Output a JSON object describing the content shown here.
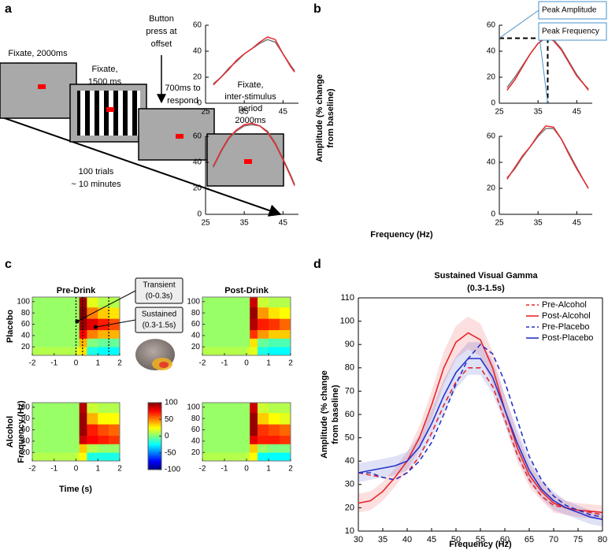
{
  "panel_labels": [
    "a",
    "b",
    "c",
    "d"
  ],
  "diagram": {
    "steps": [
      {
        "label": [
          "Fixate, 2000ms"
        ]
      },
      {
        "label": [
          "Fixate,",
          "1500 ms"
        ]
      },
      {
        "label": [
          "700ms to",
          "respond"
        ]
      },
      {
        "label": [
          "Fixate,",
          "inter-stimulus",
          "period",
          "2000ms"
        ]
      }
    ],
    "event": [
      "Button",
      "press at",
      "offset"
    ],
    "timeline": [
      "100 trials",
      "~ 10 minutes"
    ]
  },
  "panel_b_labels": {
    "ylabel": [
      "Amplitude (% change",
      "from baseline)"
    ],
    "xlabel": "Frequency (Hz)"
  },
  "panel_c_labels": {
    "ylabel": "Frequency (Hz)",
    "xlabel": "Time (s)"
  },
  "chart_data": [
    {
      "type": "line",
      "x": [
        27,
        29,
        31,
        33,
        35,
        37,
        39,
        41,
        43,
        45,
        47,
        48
      ],
      "xlim": [
        25,
        49
      ],
      "xticks": [
        25,
        35,
        45
      ],
      "ylim": [
        0,
        60
      ],
      "yticks": [
        0,
        20,
        40,
        60
      ],
      "series": [
        {
          "color": "#7a7a7a",
          "values": [
            15,
            20,
            27,
            32,
            38,
            42,
            46,
            49,
            47,
            38,
            29,
            25
          ]
        },
        {
          "color": "#e8262a",
          "values": [
            14,
            20,
            26,
            33,
            38,
            42,
            47,
            51,
            49,
            38,
            28,
            24
          ]
        }
      ]
    },
    {
      "type": "line",
      "x": [
        27,
        29,
        31,
        33,
        35,
        37,
        39,
        41,
        43,
        45,
        47,
        48
      ],
      "xlim": [
        25,
        49
      ],
      "xticks": [
        25,
        35,
        45
      ],
      "ylim": [
        0,
        60
      ],
      "yticks": [
        0,
        20,
        40,
        60
      ],
      "series": [
        {
          "color": "#7a7a7a",
          "values": [
            12,
            20,
            29,
            38,
            46,
            50,
            49,
            42,
            32,
            22,
            14,
            11
          ]
        },
        {
          "color": "#e8262a",
          "values": [
            10,
            18,
            28,
            38,
            46,
            51,
            48,
            41,
            31,
            21,
            14,
            10
          ]
        }
      ],
      "annotations": [
        "Peak Amplitude",
        "Peak Frequency"
      ],
      "peak": {
        "x": 37.5,
        "y": 50
      }
    },
    {
      "type": "line",
      "x": [
        27,
        29,
        31,
        33,
        35,
        37,
        39,
        41,
        43,
        45,
        47,
        48
      ],
      "xlim": [
        25,
        49
      ],
      "xticks": [
        25,
        35,
        45
      ],
      "ylim": [
        0,
        60
      ],
      "yticks": [
        0,
        20,
        40,
        60
      ],
      "series": [
        {
          "color": "#7a7a7a",
          "values": [
            36,
            48,
            58,
            64,
            68,
            69,
            68,
            64,
            55,
            43,
            30,
            23
          ]
        },
        {
          "color": "#e8262a",
          "values": [
            37,
            49,
            59,
            65,
            69,
            70,
            68,
            63,
            54,
            42,
            29,
            22
          ]
        }
      ]
    },
    {
      "type": "line",
      "x": [
        27,
        29,
        31,
        33,
        35,
        37,
        39,
        41,
        43,
        45,
        47,
        48
      ],
      "xlim": [
        25,
        49
      ],
      "xticks": [
        25,
        35,
        45
      ],
      "ylim": [
        0,
        60
      ],
      "yticks": [
        0,
        20,
        40,
        60
      ],
      "series": [
        {
          "color": "#7a7a7a",
          "values": [
            28,
            35,
            44,
            52,
            60,
            66,
            66,
            58,
            47,
            36,
            25,
            20
          ]
        },
        {
          "color": "#e8262a",
          "values": [
            27,
            36,
            45,
            52,
            61,
            68,
            67,
            58,
            46,
            35,
            25,
            20
          ]
        }
      ]
    },
    {
      "type": "heatmap",
      "title": "Pre-Drink",
      "row_label": "Placebo",
      "colormap": "jet",
      "clim": [
        -100,
        100
      ],
      "x_edges": [
        -2,
        -1,
        0,
        0.15,
        0.5,
        1,
        1.5,
        2
      ],
      "y_edges": [
        5,
        20,
        35,
        50,
        70,
        90,
        108
      ],
      "z": [
        [
          10,
          10,
          20,
          30,
          -20,
          -25,
          -25
        ],
        [
          5,
          5,
          5,
          40,
          0,
          -5,
          -5
        ],
        [
          5,
          5,
          5,
          75,
          50,
          40,
          40
        ],
        [
          5,
          5,
          5,
          95,
          80,
          70,
          60
        ],
        [
          5,
          5,
          5,
          100,
          50,
          35,
          30
        ],
        [
          5,
          5,
          5,
          95,
          20,
          10,
          10
        ]
      ],
      "xlim": [
        -2,
        2
      ],
      "xticks": [
        -2,
        -1,
        0,
        1,
        2
      ],
      "ylim": [
        5,
        108
      ],
      "yticks": [
        20,
        40,
        60,
        80,
        100
      ],
      "markers": [
        0,
        0.3,
        1.5
      ],
      "annotations": [
        [
          "Transient",
          "(0-0.3s)"
        ],
        [
          "Sustained",
          "(0.3-1.5s)"
        ]
      ]
    },
    {
      "type": "heatmap",
      "title": "Post-Drink",
      "colormap": "jet",
      "clim": [
        -100,
        100
      ],
      "x_edges": [
        -2,
        -1,
        0,
        0.15,
        0.5,
        1,
        1.5,
        2
      ],
      "y_edges": [
        5,
        20,
        35,
        50,
        70,
        90,
        108
      ],
      "z": [
        [
          10,
          10,
          15,
          20,
          -20,
          -25,
          -25
        ],
        [
          5,
          5,
          5,
          30,
          -5,
          -10,
          -10
        ],
        [
          5,
          5,
          5,
          65,
          45,
          35,
          35
        ],
        [
          5,
          5,
          5,
          90,
          70,
          65,
          55
        ],
        [
          5,
          5,
          5,
          95,
          45,
          30,
          25
        ],
        [
          5,
          5,
          5,
          85,
          15,
          10,
          10
        ]
      ],
      "xlim": [
        -2,
        2
      ],
      "xticks": [
        -2,
        -1,
        0,
        1,
        2
      ],
      "ylim": [
        5,
        108
      ],
      "yticks": [
        20,
        40,
        60,
        80,
        100
      ]
    },
    {
      "type": "heatmap",
      "row_label": "Alcohol",
      "colormap": "jet",
      "clim": [
        -100,
        100
      ],
      "x_edges": [
        -2,
        -1,
        0,
        0.15,
        0.5,
        1,
        1.5,
        2
      ],
      "y_edges": [
        5,
        20,
        35,
        50,
        70,
        90,
        108
      ],
      "z": [
        [
          10,
          10,
          15,
          25,
          -20,
          -20,
          -20
        ],
        [
          5,
          5,
          5,
          35,
          10,
          5,
          5
        ],
        [
          5,
          5,
          5,
          85,
          75,
          70,
          65
        ],
        [
          5,
          5,
          5,
          95,
          70,
          60,
          55
        ],
        [
          5,
          5,
          5,
          95,
          40,
          25,
          25
        ],
        [
          5,
          5,
          5,
          90,
          15,
          10,
          10
        ]
      ],
      "xlim": [
        -2,
        2
      ],
      "xticks": [
        -2,
        -1,
        0,
        1,
        2
      ],
      "ylim": [
        5,
        108
      ],
      "yticks": [
        20,
        40,
        60,
        80,
        100
      ],
      "colorbar": {
        "ticks": [
          100,
          50,
          0,
          -50,
          -100
        ]
      }
    },
    {
      "type": "heatmap",
      "colormap": "jet",
      "clim": [
        -100,
        100
      ],
      "x_edges": [
        -2,
        -1,
        0,
        0.15,
        0.5,
        1,
        1.5,
        2
      ],
      "y_edges": [
        5,
        20,
        35,
        50,
        70,
        90,
        108
      ],
      "z": [
        [
          10,
          10,
          15,
          25,
          -25,
          -25,
          -25
        ],
        [
          5,
          5,
          5,
          35,
          5,
          0,
          0
        ],
        [
          5,
          5,
          5,
          80,
          70,
          70,
          65
        ],
        [
          5,
          5,
          5,
          95,
          65,
          60,
          55
        ],
        [
          5,
          5,
          5,
          95,
          35,
          25,
          20
        ],
        [
          5,
          5,
          5,
          85,
          15,
          10,
          10
        ]
      ],
      "xlim": [
        -2,
        2
      ],
      "xticks": [
        -2,
        -1,
        0,
        1,
        2
      ],
      "ylim": [
        5,
        108
      ],
      "yticks": [
        20,
        40,
        60,
        80,
        100
      ]
    },
    {
      "type": "line",
      "title": [
        "Sustained Visual Gamma",
        "(0.3-1.5s)"
      ],
      "xlabel": "Frequency (Hz)",
      "ylabel": [
        "Amplitude (% change",
        "from baseline)"
      ],
      "legend": "upper right",
      "x": [
        30,
        32.5,
        35,
        37.5,
        40,
        42.5,
        45,
        47.5,
        50,
        52.5,
        55,
        57.5,
        60,
        62.5,
        65,
        67.5,
        70,
        72.5,
        75,
        77.5,
        80
      ],
      "xlim": [
        30,
        80
      ],
      "xticks": [
        30,
        35,
        40,
        45,
        50,
        55,
        60,
        65,
        70,
        75,
        80
      ],
      "ylim": [
        10,
        110
      ],
      "yticks": [
        10,
        20,
        30,
        40,
        50,
        60,
        70,
        80,
        90,
        100,
        110
      ],
      "series": [
        {
          "name": "Pre-Alcohol",
          "color": "#e8262a",
          "dashed": true,
          "values": [
            35,
            34,
            33,
            32,
            35,
            42,
            52,
            64,
            74,
            80,
            80,
            72,
            58,
            43,
            32,
            25,
            21,
            20,
            19,
            18,
            17
          ]
        },
        {
          "name": "Post-Alcohol",
          "color": "#e8262a",
          "dashed": false,
          "values": [
            22,
            23,
            27,
            33,
            40,
            50,
            64,
            80,
            91,
            95,
            92,
            80,
            62,
            46,
            34,
            27,
            22,
            20,
            19,
            18.5,
            18
          ],
          "error": [
            4,
            4,
            4,
            4,
            4,
            5,
            6,
            7,
            7,
            7,
            7,
            7,
            6,
            6,
            5,
            4,
            4,
            3,
            3,
            3,
            3
          ]
        },
        {
          "name": "Pre-Placebo",
          "color": "#2633c9",
          "dashed": true,
          "values": [
            35,
            35,
            33,
            32,
            35,
            40,
            48,
            60,
            73,
            84,
            90,
            86,
            74,
            58,
            42,
            32,
            25,
            21,
            19,
            17,
            16
          ]
        },
        {
          "name": "Post-Placebo",
          "color": "#2633c9",
          "dashed": false,
          "values": [
            35,
            36,
            37,
            38,
            40,
            46,
            56,
            68,
            78,
            84,
            84,
            76,
            62,
            48,
            36,
            28,
            23,
            20,
            18,
            16,
            15
          ],
          "error": [
            4,
            4,
            4,
            4,
            4,
            5,
            6,
            7,
            7,
            7,
            7,
            7,
            6,
            6,
            5,
            4,
            4,
            3,
            3,
            3,
            3
          ]
        }
      ]
    }
  ]
}
